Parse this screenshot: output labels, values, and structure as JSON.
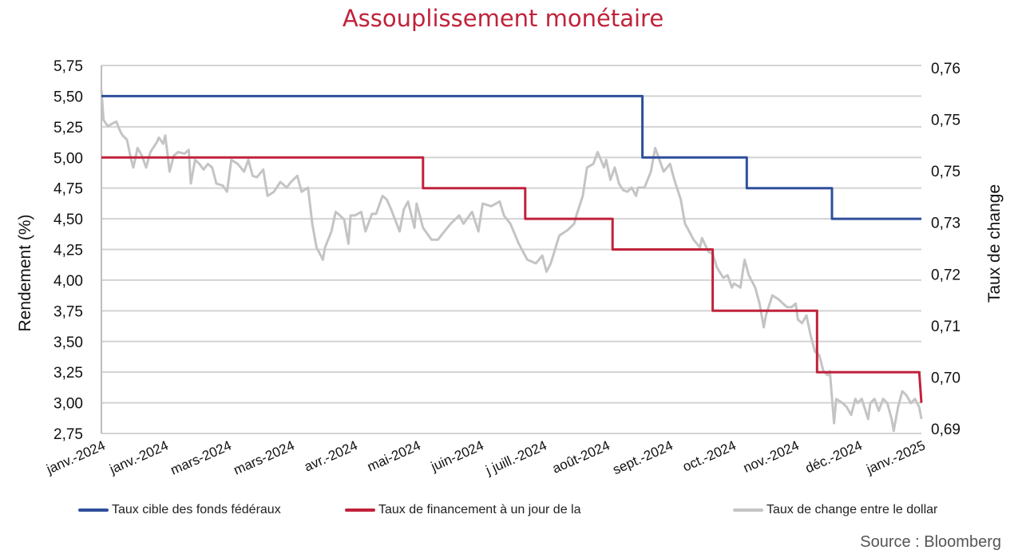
{
  "chart_data": {
    "type": "line",
    "title": "Assouplissement monétaire",
    "ylabel": "Rendement (%)",
    "y2label": "Taux de change",
    "ylim": [
      2.75,
      5.75
    ],
    "yticks": [
      "5,75",
      "5,50",
      "5,25",
      "5,00",
      "4,75",
      "4,50",
      "4,25",
      "4,00",
      "3,75",
      "3,50",
      "3,25",
      "3,00",
      "2,75"
    ],
    "y2lim": [
      0.6891,
      0.7605
    ],
    "y2ticks": [
      "0,76",
      "0,75",
      "0,75",
      "0,73",
      "0,72",
      "0,71",
      "0,70",
      "0,69"
    ],
    "xlim": [
      0,
      385
    ],
    "xticks": [
      "janv.-2024",
      "janv.-2024",
      "mars-2024",
      "mars-2024",
      "avr.-2024",
      "mai-2024",
      "juin-2024",
      "j juill.-2024",
      "août-2024",
      "sept.-2024",
      "oct.-2024",
      "nov.-2024",
      "déc.-2024",
      "janv.-2025"
    ],
    "grid": true,
    "legend_position": "bottom",
    "series": [
      {
        "name": "Taux cible des fonds fédéraux",
        "color": "#2e4f9b",
        "axis": "left",
        "step": true,
        "points": [
          [
            0,
            5.5
          ],
          [
            254,
            5.5
          ],
          [
            254,
            5.0
          ],
          [
            303,
            5.0
          ],
          [
            303,
            4.75
          ],
          [
            343,
            4.75
          ],
          [
            343,
            4.5
          ],
          [
            385,
            4.5
          ]
        ]
      },
      {
        "name": "Taux de financement à un jour de la",
        "color": "#c0223b",
        "axis": "left",
        "step": true,
        "points": [
          [
            0,
            5.0
          ],
          [
            151,
            5.0
          ],
          [
            151,
            4.75
          ],
          [
            199,
            4.75
          ],
          [
            199,
            4.5
          ],
          [
            240,
            4.5
          ],
          [
            240,
            4.25
          ],
          [
            287,
            4.25
          ],
          [
            287,
            3.75
          ],
          [
            336,
            3.75
          ],
          [
            336,
            3.25
          ],
          [
            384,
            3.25
          ],
          [
            385,
            3.0
          ]
        ]
      },
      {
        "name": "Taux de change entre le dollar",
        "color": "#c4c4c4",
        "axis": "right",
        "points": [
          [
            0,
            0.7558
          ],
          [
            1,
            0.7499
          ],
          [
            3,
            0.7487
          ],
          [
            5,
            0.7492
          ],
          [
            7,
            0.7496
          ],
          [
            9,
            0.7476
          ],
          [
            10,
            0.7469
          ],
          [
            12,
            0.7461
          ],
          [
            14,
            0.7422
          ],
          [
            15,
            0.7407
          ],
          [
            17,
            0.7445
          ],
          [
            19,
            0.743
          ],
          [
            21,
            0.7407
          ],
          [
            23,
            0.7437
          ],
          [
            26,
            0.7456
          ],
          [
            27,
            0.7465
          ],
          [
            29,
            0.7453
          ],
          [
            30,
            0.7469
          ],
          [
            32,
            0.7399
          ],
          [
            34,
            0.743
          ],
          [
            36,
            0.7437
          ],
          [
            39,
            0.7434
          ],
          [
            41,
            0.7441
          ],
          [
            42,
            0.7376
          ],
          [
            44,
            0.7422
          ],
          [
            46,
            0.7414
          ],
          [
            48,
            0.7403
          ],
          [
            50,
            0.7414
          ],
          [
            52,
            0.7407
          ],
          [
            54,
            0.7376
          ],
          [
            57,
            0.7372
          ],
          [
            59,
            0.736
          ],
          [
            61,
            0.7422
          ],
          [
            64,
            0.7414
          ],
          [
            67,
            0.7399
          ],
          [
            69,
            0.7422
          ],
          [
            71,
            0.7391
          ],
          [
            73,
            0.7388
          ],
          [
            76,
            0.7403
          ],
          [
            78,
            0.7352
          ],
          [
            81,
            0.736
          ],
          [
            84,
            0.7379
          ],
          [
            87,
            0.7368
          ],
          [
            89,
            0.7379
          ],
          [
            92,
            0.7391
          ],
          [
            94,
            0.736
          ],
          [
            97,
            0.7368
          ],
          [
            99,
            0.7298
          ],
          [
            101,
            0.7252
          ],
          [
            103,
            0.7236
          ],
          [
            104,
            0.7228
          ],
          [
            105,
            0.7252
          ],
          [
            108,
            0.7283
          ],
          [
            110,
            0.7321
          ],
          [
            112,
            0.7314
          ],
          [
            114,
            0.7306
          ],
          [
            116,
            0.7259
          ],
          [
            117,
            0.7314
          ],
          [
            119,
            0.7314
          ],
          [
            122,
            0.7321
          ],
          [
            124,
            0.7283
          ],
          [
            127,
            0.7317
          ],
          [
            129,
            0.7317
          ],
          [
            132,
            0.7352
          ],
          [
            134,
            0.7345
          ],
          [
            136,
            0.7326
          ],
          [
            140,
            0.7283
          ],
          [
            142,
            0.7326
          ],
          [
            144,
            0.7341
          ],
          [
            147,
            0.729
          ],
          [
            148,
            0.7337
          ],
          [
            151,
            0.729
          ],
          [
            155,
            0.7267
          ],
          [
            158,
            0.7267
          ],
          [
            161,
            0.7283
          ],
          [
            164,
            0.7298
          ],
          [
            168,
            0.7314
          ],
          [
            170,
            0.7298
          ],
          [
            174,
            0.7321
          ],
          [
            177,
            0.7283
          ],
          [
            179,
            0.7337
          ],
          [
            183,
            0.7332
          ],
          [
            187,
            0.7341
          ],
          [
            189,
            0.7314
          ],
          [
            192,
            0.7298
          ],
          [
            196,
            0.7259
          ],
          [
            200,
            0.7228
          ],
          [
            204,
            0.7221
          ],
          [
            207,
            0.7236
          ],
          [
            209,
            0.7205
          ],
          [
            211,
            0.7221
          ],
          [
            215,
            0.7275
          ],
          [
            219,
            0.7286
          ],
          [
            222,
            0.7298
          ],
          [
            223,
            0.7314
          ],
          [
            226,
            0.7352
          ],
          [
            228,
            0.7407
          ],
          [
            231,
            0.7414
          ],
          [
            233,
            0.7437
          ],
          [
            236,
            0.7407
          ],
          [
            237,
            0.7422
          ],
          [
            239,
            0.7383
          ],
          [
            241,
            0.7407
          ],
          [
            243,
            0.7376
          ],
          [
            245,
            0.7363
          ],
          [
            247,
            0.736
          ],
          [
            249,
            0.7368
          ],
          [
            251,
            0.7352
          ],
          [
            252,
            0.7368
          ],
          [
            255,
            0.7368
          ],
          [
            258,
            0.7399
          ],
          [
            260,
            0.7445
          ],
          [
            262,
            0.7422
          ],
          [
            264,
            0.7399
          ],
          [
            267,
            0.7414
          ],
          [
            269,
            0.7383
          ],
          [
            272,
            0.7345
          ],
          [
            274,
            0.7298
          ],
          [
            276,
            0.7283
          ],
          [
            278,
            0.7267
          ],
          [
            281,
            0.7252
          ],
          [
            282,
            0.727
          ],
          [
            285,
            0.7244
          ],
          [
            287,
            0.7239
          ],
          [
            289,
            0.7213
          ],
          [
            292,
            0.7193
          ],
          [
            294,
            0.7198
          ],
          [
            296,
            0.7174
          ],
          [
            297,
            0.7182
          ],
          [
            300,
            0.7174
          ],
          [
            302,
            0.7228
          ],
          [
            304,
            0.7198
          ],
          [
            307,
            0.7174
          ],
          [
            309,
            0.7143
          ],
          [
            311,
            0.7097
          ],
          [
            312,
            0.712
          ],
          [
            315,
            0.7159
          ],
          [
            318,
            0.7151
          ],
          [
            320,
            0.7143
          ],
          [
            322,
            0.7136
          ],
          [
            324,
            0.7136
          ],
          [
            326,
            0.7143
          ],
          [
            327,
            0.7112
          ],
          [
            329,
            0.7105
          ],
          [
            331,
            0.712
          ],
          [
            333,
            0.7081
          ],
          [
            335,
            0.705
          ],
          [
            337,
            0.7043
          ],
          [
            339,
            0.7012
          ],
          [
            341,
            0.7004
          ],
          [
            342,
            0.7012
          ],
          [
            344,
            0.6911
          ],
          [
            345,
            0.6958
          ],
          [
            348,
            0.695
          ],
          [
            350,
            0.6942
          ],
          [
            352,
            0.6927
          ],
          [
            354,
            0.6958
          ],
          [
            355,
            0.695
          ],
          [
            357,
            0.6958
          ],
          [
            360,
            0.6919
          ],
          [
            361,
            0.695
          ],
          [
            363,
            0.6958
          ],
          [
            365,
            0.6935
          ],
          [
            367,
            0.6958
          ],
          [
            369,
            0.695
          ],
          [
            371,
            0.6919
          ],
          [
            372,
            0.6896
          ],
          [
            374,
            0.6942
          ],
          [
            376,
            0.6973
          ],
          [
            378,
            0.6965
          ],
          [
            380,
            0.695
          ],
          [
            382,
            0.6958
          ],
          [
            384,
            0.6942
          ],
          [
            385,
            0.6919
          ]
        ]
      }
    ],
    "source": "Source : Bloomberg"
  }
}
